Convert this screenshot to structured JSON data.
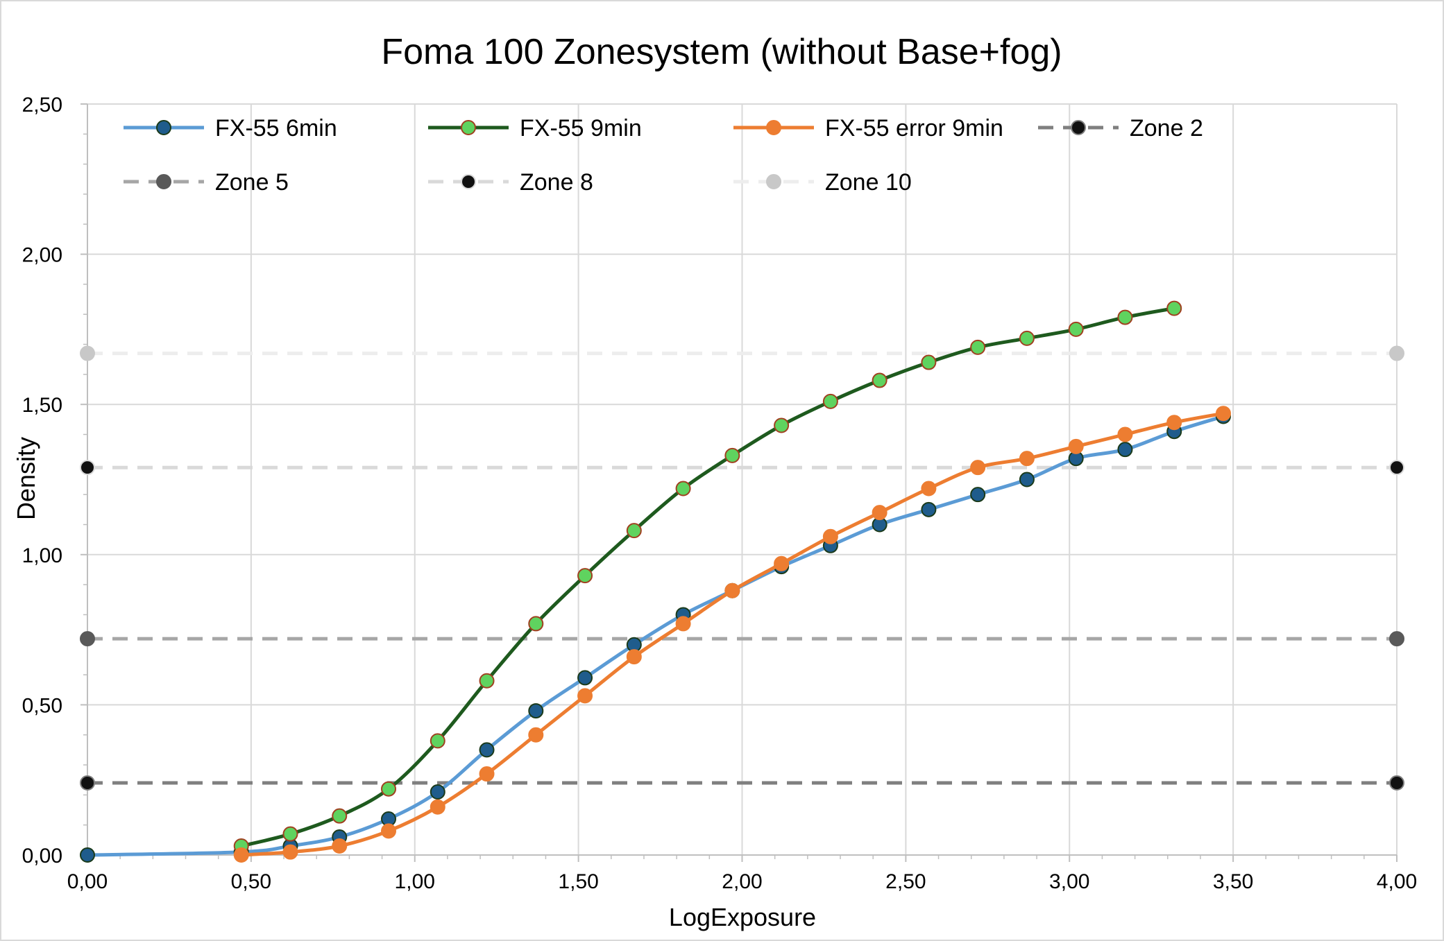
{
  "chart_data": {
    "type": "line",
    "title": "Foma 100 Zonesystem (without Base+fog)",
    "xlabel": "LogExposure",
    "ylabel": "Density",
    "xlim": [
      0,
      4
    ],
    "ylim": [
      0,
      2.5
    ],
    "x_ticks": [
      "0,00",
      "0,50",
      "1,00",
      "1,50",
      "2,00",
      "2,50",
      "3,00",
      "3,50",
      "4,00"
    ],
    "y_ticks": [
      "0,00",
      "0,50",
      "1,00",
      "1,50",
      "2,00",
      "2,50"
    ],
    "grid": true,
    "legend_position": "top",
    "series": [
      {
        "name": "FX-55 6min",
        "line_color": "#5b9bd5",
        "marker_fill": "#1f5c8c",
        "marker_stroke": "#1a3a1a",
        "dash": "solid",
        "x": [
          0.0,
          0.47,
          0.62,
          0.77,
          0.92,
          1.07,
          1.22,
          1.37,
          1.52,
          1.67,
          1.82,
          1.97,
          2.12,
          2.27,
          2.42,
          2.57,
          2.72,
          2.87,
          3.02,
          3.17,
          3.32,
          3.47
        ],
        "y": [
          0.0,
          0.01,
          0.03,
          0.06,
          0.12,
          0.21,
          0.35,
          0.48,
          0.59,
          0.7,
          0.8,
          0.88,
          0.96,
          1.03,
          1.1,
          1.15,
          1.2,
          1.25,
          1.32,
          1.35,
          1.41,
          1.46
        ]
      },
      {
        "name": "FX-55 9min",
        "line_color": "#1e5a1e",
        "marker_fill": "#5fd35f",
        "marker_stroke": "#a04020",
        "dash": "solid",
        "x": [
          0.47,
          0.62,
          0.77,
          0.92,
          1.07,
          1.22,
          1.37,
          1.52,
          1.67,
          1.82,
          1.97,
          2.12,
          2.27,
          2.42,
          2.57,
          2.72,
          2.87,
          3.02,
          3.17,
          3.32
        ],
        "y": [
          0.03,
          0.07,
          0.13,
          0.22,
          0.38,
          0.58,
          0.77,
          0.93,
          1.08,
          1.22,
          1.33,
          1.43,
          1.51,
          1.58,
          1.64,
          1.69,
          1.72,
          1.75,
          1.79,
          1.82
        ]
      },
      {
        "name": "FX-55 error 9min",
        "line_color": "#ed7d31",
        "marker_fill": "#ed7d31",
        "marker_stroke": "#ed7d31",
        "dash": "solid",
        "x": [
          0.47,
          0.62,
          0.77,
          0.92,
          1.07,
          1.22,
          1.37,
          1.52,
          1.67,
          1.82,
          1.97,
          2.12,
          2.27,
          2.42,
          2.57,
          2.72,
          2.87,
          3.02,
          3.17,
          3.32,
          3.47
        ],
        "y": [
          0.0,
          0.01,
          0.03,
          0.08,
          0.16,
          0.27,
          0.4,
          0.53,
          0.66,
          0.77,
          0.88,
          0.97,
          1.06,
          1.14,
          1.22,
          1.29,
          1.32,
          1.36,
          1.4,
          1.44,
          1.47
        ]
      },
      {
        "name": "Zone 2",
        "line_color": "#7f7f7f",
        "marker_fill": "#111111",
        "marker_stroke": "#7f7f7f",
        "dash": "dashed",
        "x": [
          0.0,
          4.0
        ],
        "y": [
          0.24,
          0.24
        ]
      },
      {
        "name": "Zone 5",
        "line_color": "#a6a6a6",
        "marker_fill": "#595959",
        "marker_stroke": "#595959",
        "dash": "dashed",
        "x": [
          0.0,
          4.0
        ],
        "y": [
          0.72,
          0.72
        ]
      },
      {
        "name": "Zone 8",
        "line_color": "#d9d9d9",
        "marker_fill": "#111111",
        "marker_stroke": "#d9d9d9",
        "dash": "dashed",
        "x": [
          0.0,
          4.0
        ],
        "y": [
          1.29,
          1.29
        ]
      },
      {
        "name": "Zone 10",
        "line_color": "#ededed",
        "marker_fill": "#c8c8c8",
        "marker_stroke": "#c8c8c8",
        "dash": "dashed",
        "x": [
          0.0,
          4.0
        ],
        "y": [
          1.67,
          1.67
        ]
      }
    ]
  }
}
